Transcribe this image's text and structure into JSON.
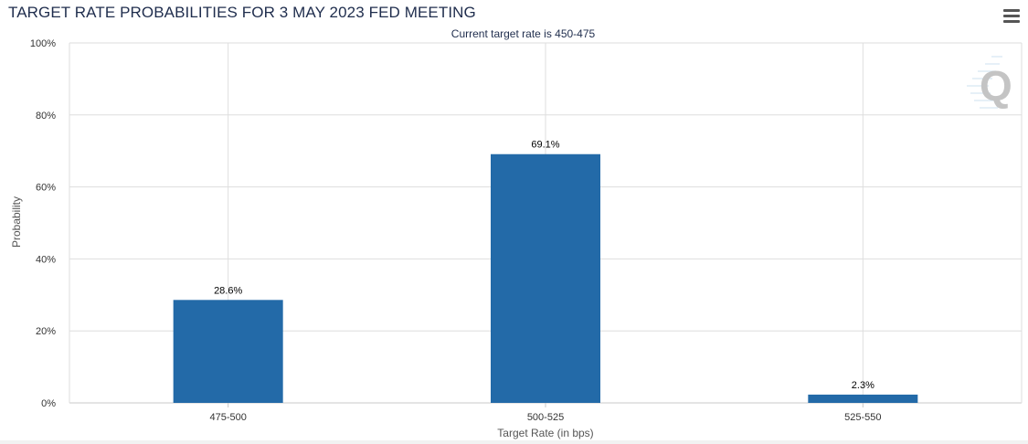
{
  "header": {
    "title": "TARGET RATE PROBABILITIES FOR 3 MAY 2023 FED MEETING",
    "subtitle": "Current target rate is 450-475",
    "menu_icon": "hamburger-menu-icon",
    "watermark_icon": "q-logo-icon"
  },
  "colors": {
    "bar": "#236aa8",
    "grid": "#dedede",
    "axis": "#c8c8c8",
    "text": "#333333"
  },
  "chart_data": {
    "type": "bar",
    "title": "TARGET RATE PROBABILITIES FOR 3 MAY 2023 FED MEETING",
    "subtitle": "Current target rate is 450-475",
    "xlabel": "Target Rate (in bps)",
    "ylabel": "Probability",
    "categories": [
      "475-500",
      "500-525",
      "525-550"
    ],
    "values": [
      28.6,
      69.1,
      2.3
    ],
    "value_labels": [
      "28.6%",
      "69.1%",
      "2.3%"
    ],
    "y_ticks": [
      "0%",
      "20%",
      "40%",
      "60%",
      "80%",
      "100%"
    ],
    "y_tick_values": [
      0,
      20,
      40,
      60,
      80,
      100
    ],
    "ylim": [
      0,
      100
    ],
    "grid": true,
    "legend": "none"
  }
}
